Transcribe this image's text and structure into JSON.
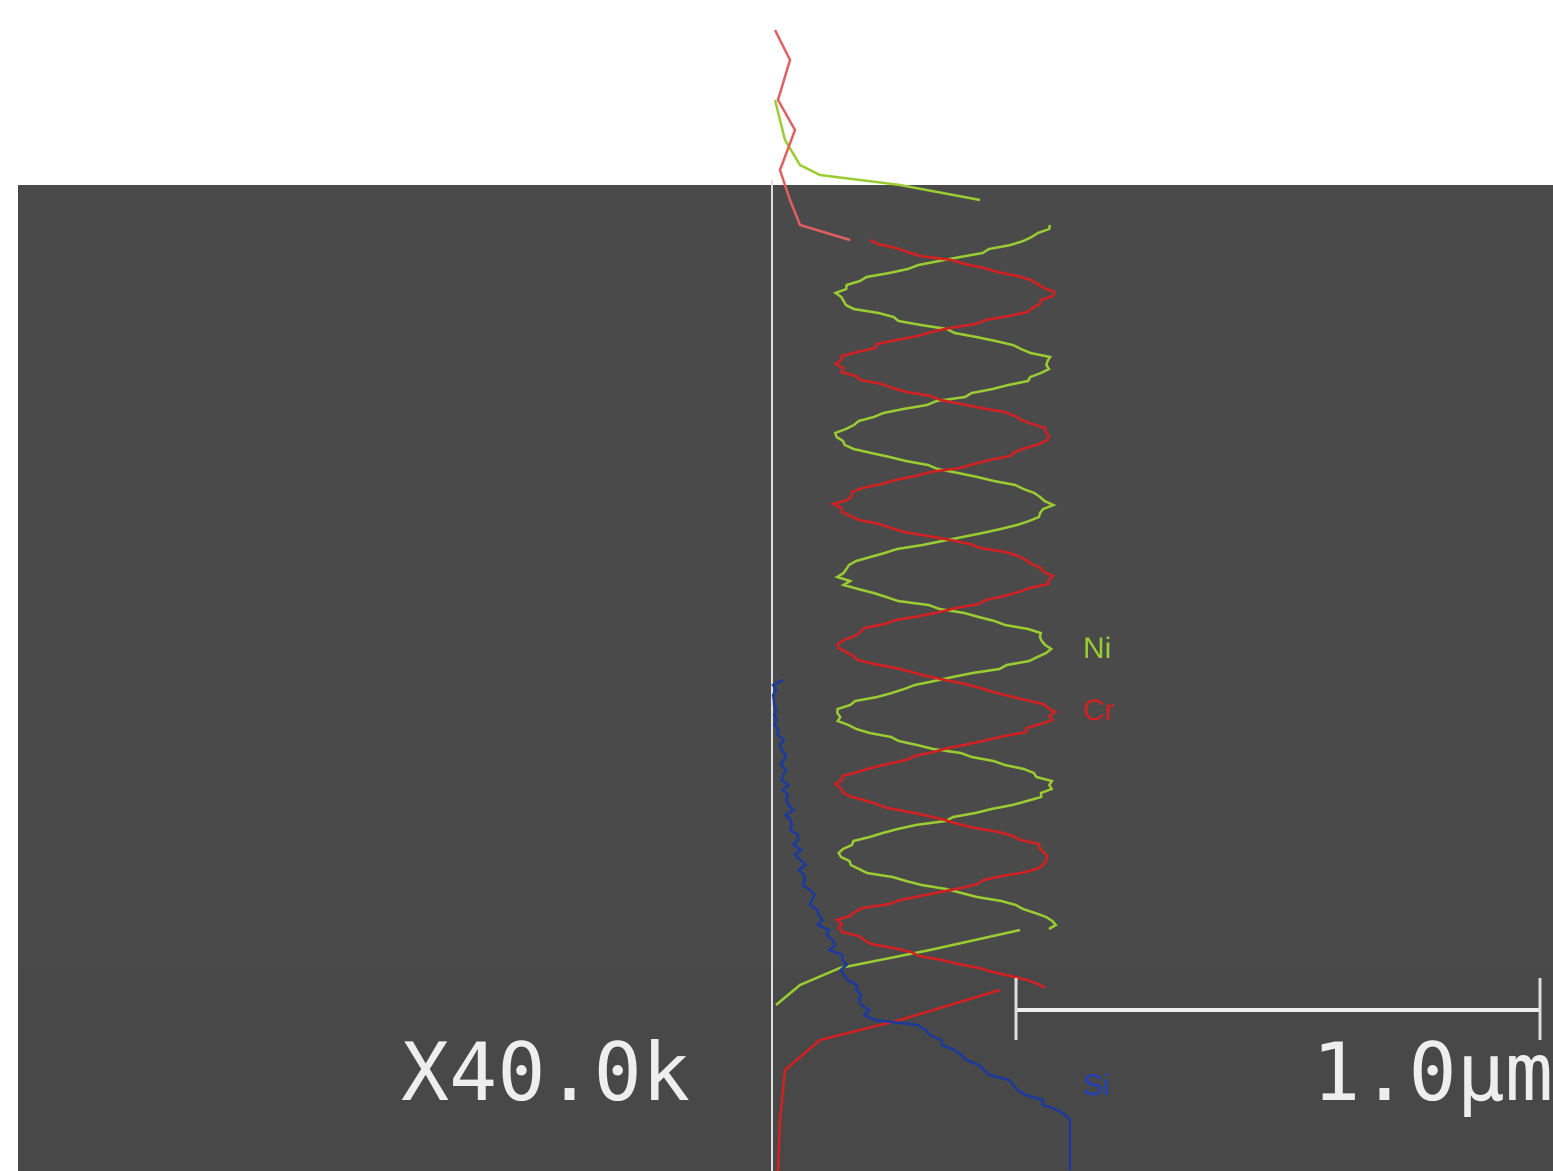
{
  "magnification": "X40.0k",
  "scale_bar": "1.0µm",
  "elements": [
    "Ni",
    "Cr",
    "Si"
  ]
}
